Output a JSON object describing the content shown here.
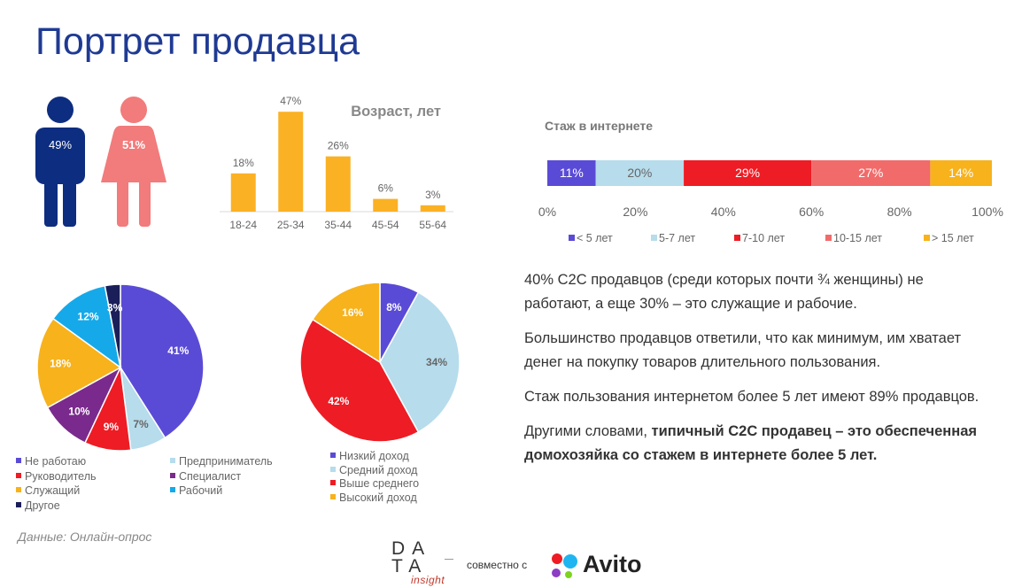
{
  "title": "Портрет продавца",
  "colors": {
    "title": "#1f3a93",
    "male": "#0d2d80",
    "female": "#f27b7b",
    "bars": "#fbb124",
    "purple": "#5a4bd6",
    "light_blue": "#b7dcec",
    "red": "#ee1c24",
    "dark_purple": "#7a2a8c",
    "cyan": "#16a9ea",
    "orange": "#f7b21c",
    "navy": "#1a1f5a",
    "salmon": "#f16b6b"
  },
  "gender": {
    "male_pct": "49%",
    "female_pct": "51%"
  },
  "data_source": "Данные: Онлайн-опрос",
  "summary": {
    "p1": "40% C2C продавцов (среди которых почти ¾ женщины) не работают, а еще 30% – это служащие и рабочие.",
    "p2": "Большинство продавцов ответили, что как минимум, им хватает денег на покупку товаров длительного пользования.",
    "p3": "Стаж пользования интернетом более 5 лет имеют 89% продавцов.",
    "p4_prefix": "Другими словами, ",
    "p4_bold": "типичный C2C продавец – это обеспеченная домохозяйка со стажем в интернете более 5 лет."
  },
  "footer": {
    "logo_row1": "DA",
    "logo_row2": "TA",
    "logo_sub": "insight",
    "partner_text": "совместно с",
    "partner_name": "Avito"
  },
  "chart_data": [
    {
      "id": "age",
      "type": "bar",
      "title": "Возраст, лет",
      "categories": [
        "18-24",
        "25-34",
        "35-44",
        "45-54",
        "55-64"
      ],
      "values": [
        18,
        47,
        26,
        6,
        3
      ],
      "labels": [
        "18%",
        "47%",
        "26%",
        "6%",
        "3%"
      ],
      "ylim": [
        0,
        50
      ],
      "grid": false
    },
    {
      "id": "internet_experience",
      "type": "bar",
      "orientation": "horizontal-stacked-100",
      "title": "Стаж в интернете",
      "series": [
        {
          "name": "< 5 лет",
          "value": 11,
          "label": "11%",
          "color": "#5a4bd6",
          "text_color": "#ffffff"
        },
        {
          "name": "5-7 лет",
          "value": 20,
          "label": "20%",
          "color": "#b7dcec",
          "text_color": "#666666"
        },
        {
          "name": "7-10 лет",
          "value": 29,
          "label": "29%",
          "color": "#ee1c24",
          "text_color": "#ffffff"
        },
        {
          "name": "10-15 лет",
          "value": 27,
          "label": "27%",
          "color": "#f16b6b",
          "text_color": "#ffffff"
        },
        {
          "name": "> 15 лет",
          "value": 14,
          "label": "14%",
          "color": "#f7b21c",
          "text_color": "#ffffff"
        }
      ],
      "x_ticks": [
        "0%",
        "20%",
        "40%",
        "60%",
        "80%",
        "100%"
      ],
      "xlim": [
        0,
        100
      ],
      "legend": "bottom"
    },
    {
      "id": "occupation",
      "type": "pie",
      "slices": [
        {
          "name": "Не работаю",
          "value": 41,
          "label": "41%",
          "color": "#5a4bd6",
          "text_color": "#ffffff"
        },
        {
          "name": "Предприниматель",
          "value": 7,
          "label": "7%",
          "color": "#b7dcec",
          "text_color": "#666666"
        },
        {
          "name": "Руководитель",
          "value": 9,
          "label": "9%",
          "color": "#ee1c24",
          "text_color": "#ffffff"
        },
        {
          "name": "Специалист",
          "value": 10,
          "label": "10%",
          "color": "#7a2a8c",
          "text_color": "#ffffff"
        },
        {
          "name": "Служащий",
          "value": 18,
          "label": "18%",
          "color": "#f7b21c",
          "text_color": "#ffffff"
        },
        {
          "name": "Рабочий",
          "value": 12,
          "label": "12%",
          "color": "#16a9ea",
          "text_color": "#ffffff"
        },
        {
          "name": "Другое",
          "value": 3,
          "label": "3%",
          "color": "#1a1f5a",
          "text_color": "#ffffff"
        }
      ],
      "legend": "bottom"
    },
    {
      "id": "income",
      "type": "pie",
      "slices": [
        {
          "name": "Низкий доход",
          "value": 8,
          "label": "8%",
          "color": "#5a4bd6",
          "text_color": "#ffffff"
        },
        {
          "name": "Средний доход",
          "value": 34,
          "label": "34%",
          "color": "#b7dcec",
          "text_color": "#666666"
        },
        {
          "name": "Выше среднего",
          "value": 42,
          "label": "42%",
          "color": "#ee1c24",
          "text_color": "#ffffff"
        },
        {
          "name": "Высокий доход",
          "value": 16,
          "label": "16%",
          "color": "#f7b21c",
          "text_color": "#ffffff"
        }
      ],
      "legend": "bottom"
    }
  ]
}
